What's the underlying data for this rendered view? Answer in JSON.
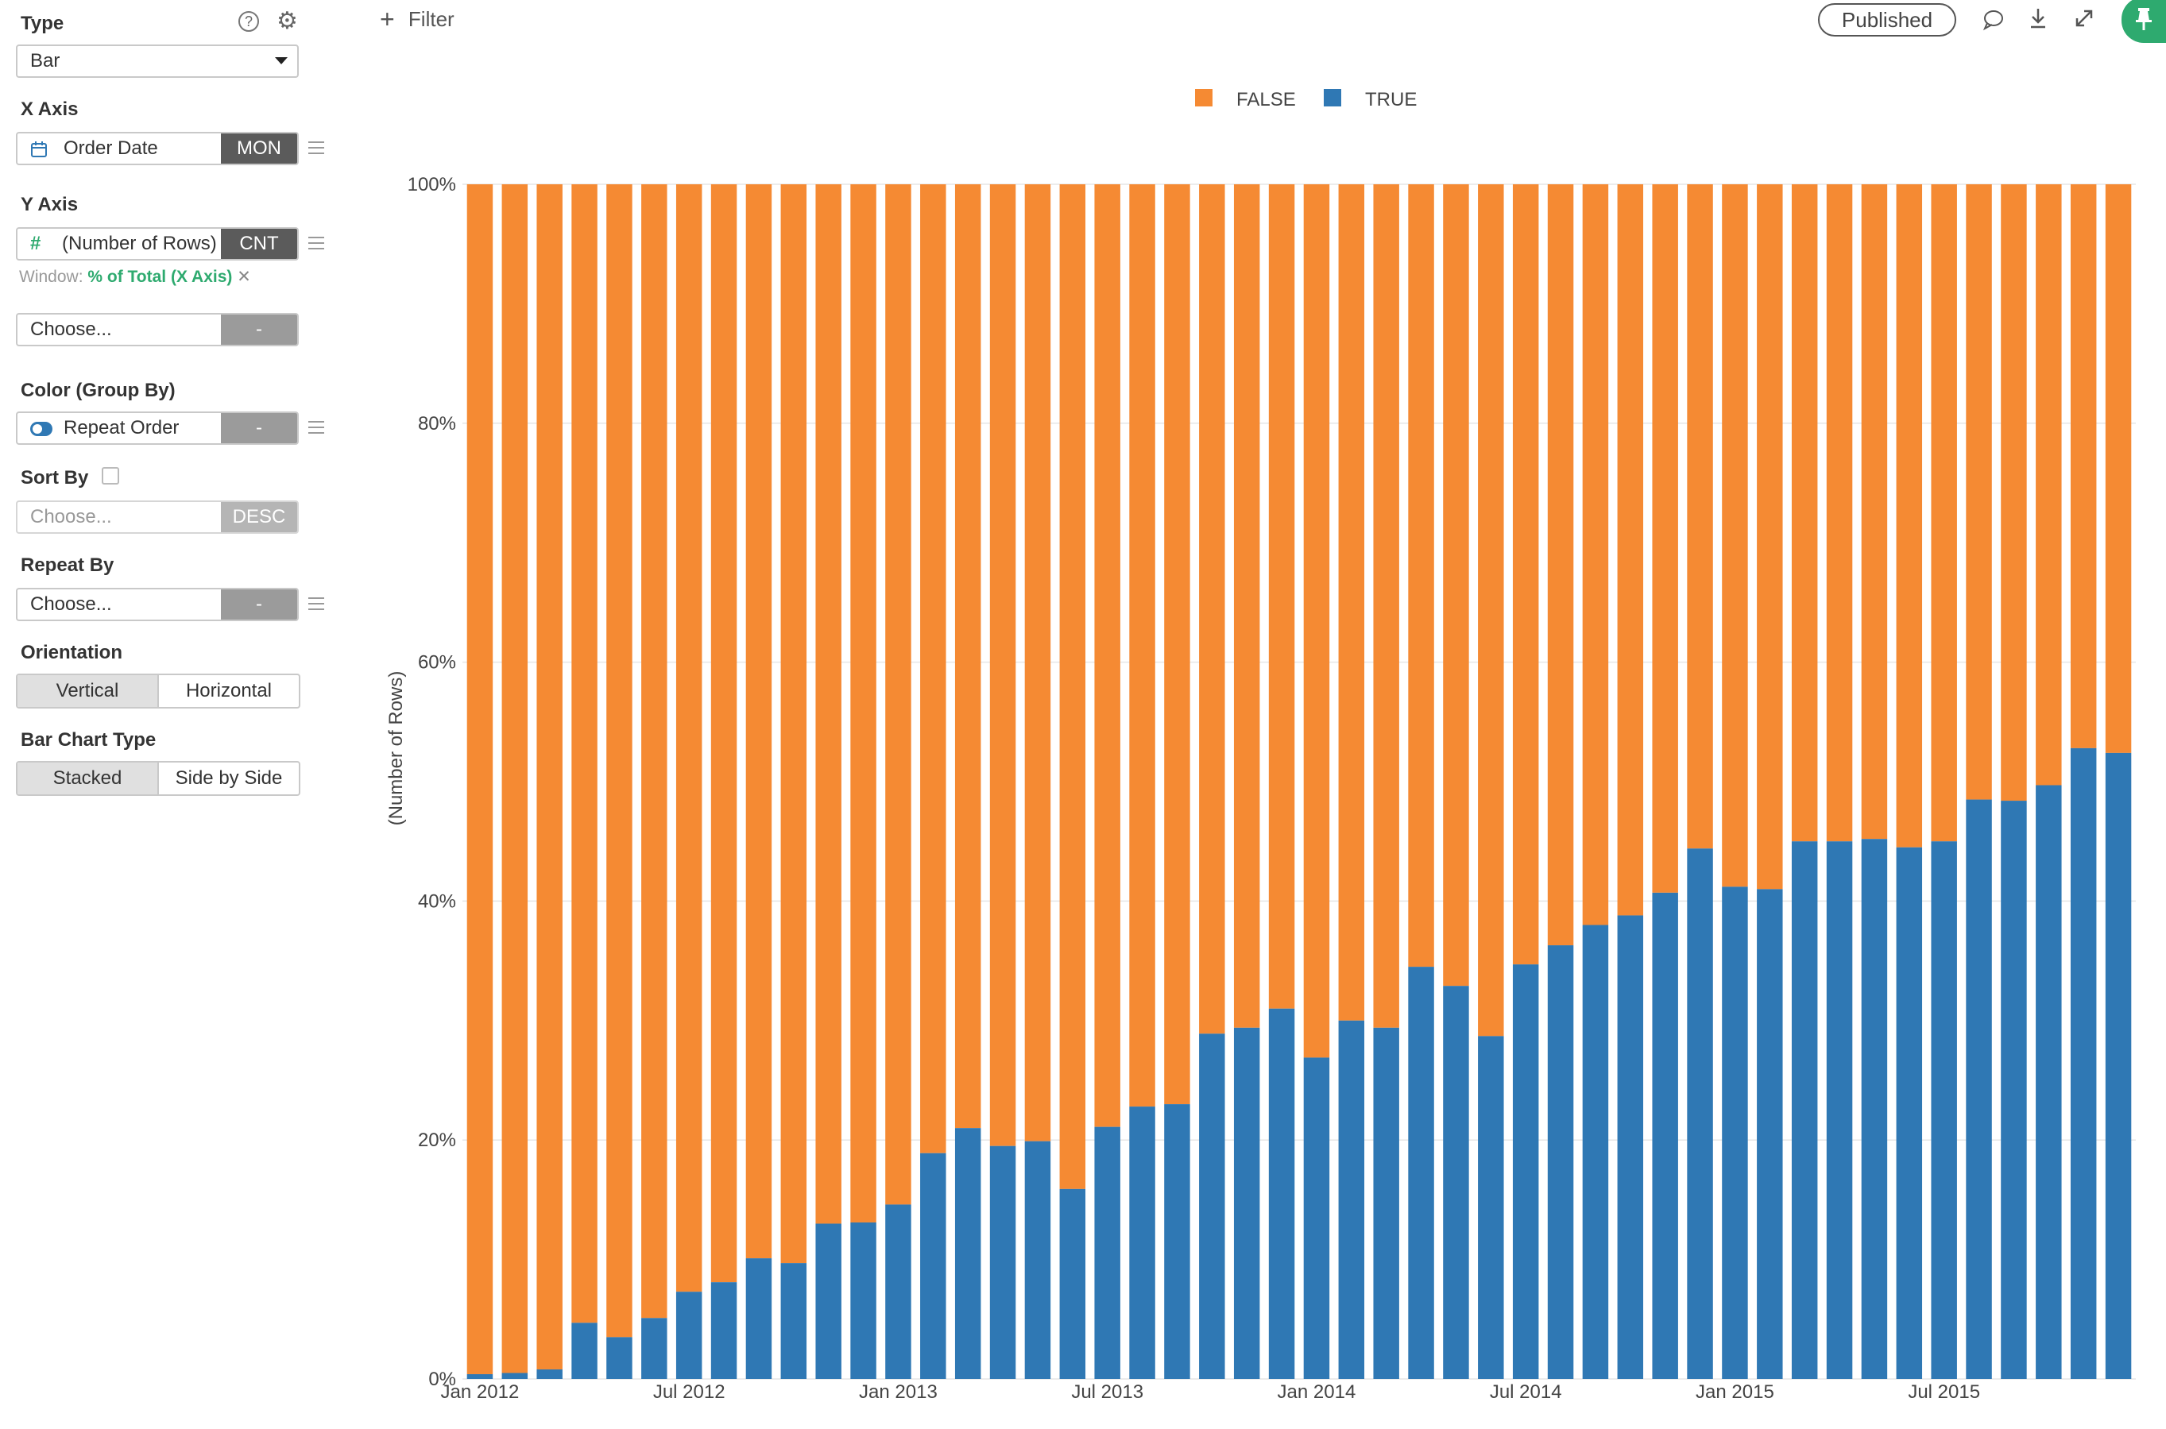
{
  "panel": {
    "type_label": "Type",
    "type_value": "Bar",
    "xaxis_label": "X Axis",
    "xaxis_field": "Order Date",
    "xaxis_agg": "MON",
    "yaxis_label": "Y Axis",
    "yaxis_field": "(Number of Rows)",
    "yaxis_agg": "CNT",
    "window_prefix": "Window:",
    "window_value": "% of Total (X Axis)",
    "y2_placeholder": "Choose...",
    "y2_agg": "-",
    "color_label": "Color (Group By)",
    "color_field": "Repeat Order",
    "color_agg": "-",
    "sort_label": "Sort By",
    "sort_placeholder": "Choose...",
    "sort_agg": "DESC",
    "repeat_label": "Repeat By",
    "repeat_placeholder": "Choose...",
    "repeat_agg": "-",
    "orientation_label": "Orientation",
    "orientation_options": [
      "Vertical",
      "Horizontal"
    ],
    "bartype_label": "Bar Chart Type",
    "bartype_options": [
      "Stacked",
      "Side by Side"
    ]
  },
  "toolbar": {
    "filter_label": "Filter",
    "published_label": "Published"
  },
  "colors": {
    "false_color": "#f58a33",
    "true_color": "#2f78b4",
    "accent_green": "#2eaa6f"
  },
  "chart_data": {
    "type": "bar",
    "stacked": true,
    "ylabel": "(Number of Rows)",
    "yticks": [
      "0%",
      "20%",
      "40%",
      "60%",
      "80%",
      "100%"
    ],
    "ylim": [
      0,
      100
    ],
    "xtick_labels": [
      "Jan 2012",
      "Jul 2012",
      "Jan 2013",
      "Jul 2013",
      "Jan 2014",
      "Jul 2014",
      "Jan 2015",
      "Jul 2015"
    ],
    "legend": [
      "FALSE",
      "TRUE"
    ],
    "legend_position": "top-center",
    "series": [
      {
        "name": "TRUE",
        "values": [
          0.4,
          0.5,
          0.8,
          4.7,
          3.5,
          5.1,
          7.3,
          8.1,
          10.1,
          9.7,
          13.0,
          13.1,
          14.6,
          18.9,
          21.0,
          19.5,
          19.9,
          15.9,
          21.1,
          22.8,
          23.0,
          28.9,
          29.4,
          31.0,
          26.9,
          30.0,
          29.4,
          34.5,
          32.9,
          28.7,
          34.7,
          36.3,
          38.0,
          38.8,
          40.7,
          44.4,
          41.2,
          41.0,
          45.0,
          45.0,
          45.2,
          44.5,
          45.0,
          48.5,
          48.4,
          49.7,
          52.8,
          52.4
        ]
      },
      {
        "name": "FALSE",
        "values": [
          99.6,
          99.5,
          99.2,
          95.3,
          96.5,
          94.9,
          92.7,
          91.9,
          89.9,
          90.3,
          87.0,
          86.9,
          85.4,
          81.1,
          79.0,
          80.5,
          80.1,
          84.1,
          78.9,
          77.2,
          77.0,
          71.1,
          70.6,
          69.0,
          73.1,
          70.0,
          70.6,
          65.5,
          67.1,
          71.3,
          65.3,
          63.7,
          62.0,
          61.2,
          59.3,
          55.6,
          58.8,
          59.0,
          55.0,
          55.0,
          54.8,
          55.5,
          55.0,
          51.5,
          51.6,
          50.3,
          47.2,
          47.6
        ]
      }
    ]
  }
}
